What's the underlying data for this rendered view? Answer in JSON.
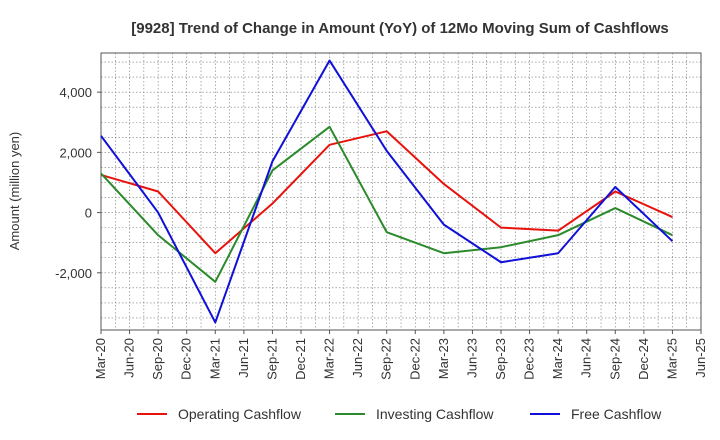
{
  "chart_data": {
    "type": "line",
    "title": "[9928]  Trend of Change in Amount (YoY) of 12Mo Moving Sum of Cashflows",
    "xlabel": "",
    "ylabel": "Amount (million yen)",
    "ylim": [
      -3900,
      5300
    ],
    "yticks": [
      4000,
      2000,
      0,
      -2000
    ],
    "ytick_labels": [
      "4,000",
      "2,000",
      "0",
      "-2,000"
    ],
    "x_labels": [
      "Mar-20",
      "Jun-20",
      "Sep-20",
      "Dec-20",
      "Mar-21",
      "Jun-21",
      "Sep-21",
      "Dec-21",
      "Mar-22",
      "Jun-22",
      "Sep-22",
      "Dec-22",
      "Mar-23",
      "Jun-23",
      "Sep-23",
      "Dec-23",
      "Mar-24",
      "Jun-24",
      "Sep-24",
      "Dec-24",
      "Mar-25",
      "Jun-25"
    ],
    "grid": true,
    "legend_position": "bottom",
    "series": [
      {
        "name": "Operating Cashflow",
        "color": "#e8120c",
        "x": [
          "Mar-20",
          "Sep-20",
          "Mar-21",
          "Sep-21",
          "Mar-22",
          "Sep-22",
          "Mar-23",
          "Sep-23",
          "Mar-24",
          "Sep-24",
          "Mar-25"
        ],
        "values": [
          1250,
          700,
          -1350,
          300,
          2250,
          2700,
          950,
          -500,
          -600,
          700,
          -150
        ]
      },
      {
        "name": "Investing Cashflow",
        "color": "#2b8a2b",
        "x": [
          "Mar-20",
          "Sep-20",
          "Mar-21",
          "Sep-21",
          "Mar-22",
          "Sep-22",
          "Mar-23",
          "Sep-23",
          "Mar-24",
          "Sep-24",
          "Mar-25"
        ],
        "values": [
          1300,
          -750,
          -2300,
          1400,
          2850,
          -650,
          -1350,
          -1150,
          -750,
          150,
          -750
        ]
      },
      {
        "name": "Free Cashflow",
        "color": "#1010d8",
        "x": [
          "Mar-20",
          "Sep-20",
          "Mar-21",
          "Sep-21",
          "Mar-22",
          "Sep-22",
          "Mar-23",
          "Sep-23",
          "Mar-24",
          "Sep-24",
          "Mar-25"
        ],
        "values": [
          2550,
          0,
          -3650,
          1700,
          5050,
          2050,
          -400,
          -1650,
          -1350,
          850,
          -950
        ]
      }
    ]
  }
}
